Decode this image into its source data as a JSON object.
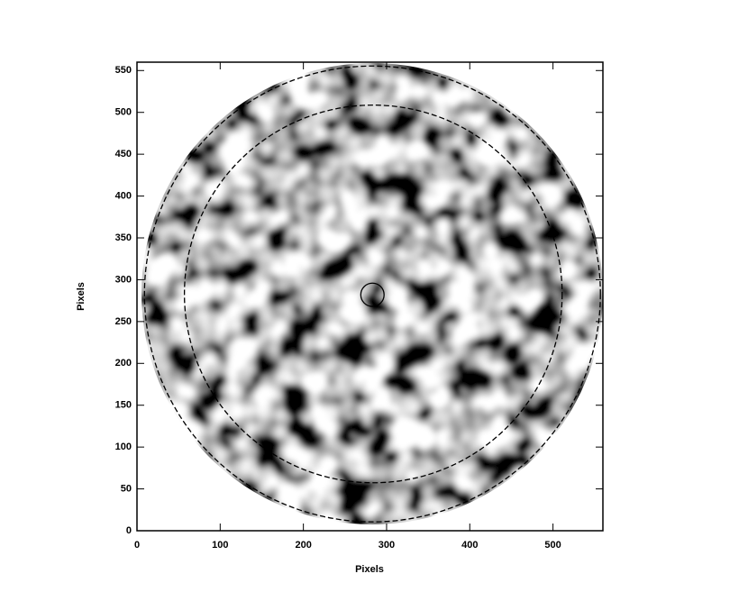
{
  "chart_data": {
    "type": "image",
    "xlabel": "Pixels",
    "ylabel": "Pixels",
    "xlim": [
      0,
      560
    ],
    "ylim": [
      0,
      560
    ],
    "xticks": [
      0,
      100,
      200,
      300,
      400,
      500
    ],
    "yticks": [
      0,
      50,
      100,
      150,
      200,
      250,
      300,
      350,
      400,
      450,
      500,
      550
    ],
    "circles": [
      {
        "cx": 283,
        "cy": 283,
        "r": 274,
        "style": "dashed"
      },
      {
        "cx": 284,
        "cy": 283,
        "r": 227,
        "style": "dashed"
      },
      {
        "cx": 283,
        "cy": 282,
        "r": 14,
        "style": "solid"
      }
    ]
  }
}
